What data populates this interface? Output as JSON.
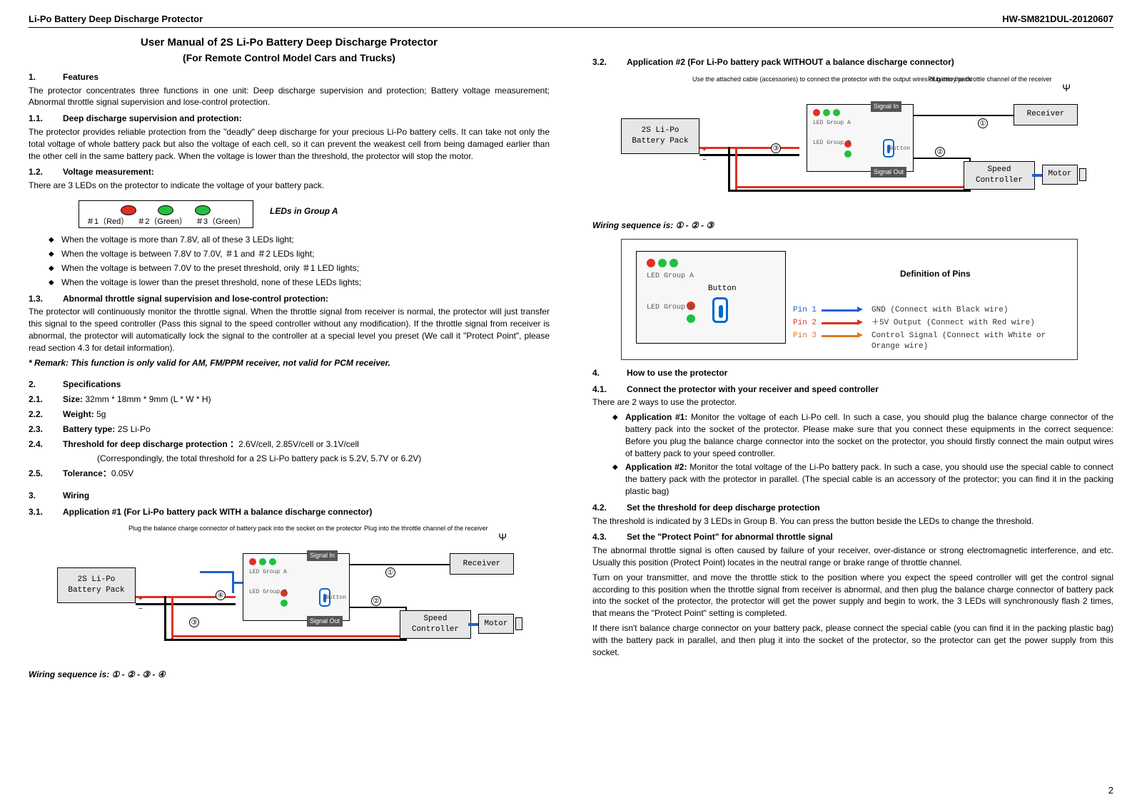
{
  "header": {
    "left": "Li-Po Battery Deep Discharge Protector",
    "right": "HW-SM821DUL-20120607"
  },
  "title": "User Manual of 2S Li-Po Battery Deep Discharge Protector",
  "subtitle": "(For Remote Control Model Cars and Trucks)",
  "s1": {
    "num": "1.",
    "title": "Features",
    "intro": "The protector concentrates three functions in one unit: Deep discharge supervision and protection; Battery voltage measurement; Abnormal throttle signal supervision and lose-control protection."
  },
  "s11": {
    "num": "1.1.",
    "title": "Deep discharge supervision and protection:",
    "body": "The protector provides reliable protection from the \"deadly\" deep discharge for your precious Li-Po battery cells. It can take not only the total voltage of whole battery pack but also the voltage of each cell, so it can prevent the weakest cell from being damaged earlier than the other cell in the same battery pack. When the voltage is lower than the threshold, the protector will stop the motor."
  },
  "s12": {
    "num": "1.2.",
    "title": "Voltage measurement:",
    "body": "There are 3 LEDs on the protector to indicate the voltage of your battery pack."
  },
  "led_diag": {
    "colors": [
      "#e03020",
      "#20c040",
      "#20c040"
    ],
    "labels": [
      "＃1（Red）",
      "＃2（Green）",
      "＃3（Green）"
    ],
    "caption": "LEDs in Group A"
  },
  "led_bullets": [
    "When the voltage is more than 7.8V, all of these 3 LEDs light;",
    "When the voltage is between 7.8V to 7.0V, ＃1 and ＃2 LEDs light;",
    "When the voltage is between 7.0V to the preset threshold, only ＃1 LED lights;",
    "When the voltage is lower than the preset threshold, none of these LEDs lights;"
  ],
  "s13": {
    "num": "1.3.",
    "title": "Abnormal throttle signal supervision and lose-control protection:",
    "body": "The protector will continuously monitor the throttle signal. When the throttle signal from receiver is normal, the protector will just transfer this signal to the speed controller (Pass this signal to the speed controller without any modification). If the throttle signal from receiver is abnormal, the protector will automatically lock the signal to the controller at a special level you preset (We call it \"Protect Point\", please read section 4.3 for detail information).",
    "remark": "* Remark: This function is only valid for AM, FM/PPM receiver, not valid for PCM receiver."
  },
  "s2": {
    "num": "2.",
    "title": "Specifications"
  },
  "specs": [
    {
      "num": "2.1.",
      "lbl": "Size:",
      "val": " 32mm * 18mm * 9mm (L * W * H)"
    },
    {
      "num": "2.2.",
      "lbl": "Weight:",
      "val": " 5g"
    },
    {
      "num": "2.3.",
      "lbl": "Battery type:",
      "val": " 2S Li-Po"
    },
    {
      "num": "2.4.",
      "lbl": "Threshold for deep discharge protection ：",
      "val": "2.6V/cell, 2.85V/cell or 3.1V/cell"
    },
    {
      "num": "",
      "lbl": "",
      "val": "(Correspondingly, the total threshold for a 2S Li-Po battery pack is 5.2V, 5.7V or 6.2V)"
    },
    {
      "num": "2.5.",
      "lbl": "Tolerance：",
      "val": "0.05V"
    }
  ],
  "s3": {
    "num": "3.",
    "title": "Wiring"
  },
  "s31": {
    "num": "3.1.",
    "title": "Application #1 (For Li-Po battery pack WITH a balance discharge connector)"
  },
  "diag_common": {
    "battery": "2S Li-Po\nBattery Pack",
    "receiver": "Receiver",
    "speedctrl": "Speed\nController",
    "motor": "Motor",
    "sig_in": "Signal In",
    "sig_out": "Signal Out",
    "led_a": "LED\nGroup A",
    "led_b": "LED\nGroup B",
    "button": "Button",
    "led_colors": [
      "#e03020",
      "#20c040",
      "#20c040"
    ],
    "ledb_color": "#e03020"
  },
  "diag1": {
    "note_left": "Plug the balance charge connector\nof battery pack into the socket on\nthe protector",
    "note_right": "Plug into the throttle channel\nof the receiver",
    "seq": "Wiring sequence is: ① - ② - ③ - ④"
  },
  "s32": {
    "num": "3.2.",
    "title": "Application #2 (For Li-Po battery pack WITHOUT a balance discharge connector)"
  },
  "diag2": {
    "note_left": "Use the attached cable (accessories)\nto connect the protector with the\noutput wires of battery pack",
    "note_right": "Plug into the throttle channel\nof the receiver",
    "seq": "Wiring sequence is: ① - ② - ③"
  },
  "pindef": {
    "button": "Button",
    "led_a": "LED\nGroup A",
    "led_b": "LED\nGroup B",
    "title": "Definition of Pins",
    "pins": [
      {
        "pin": "Pin 1",
        "color": "#2060d0",
        "desc": "GND (Connect with Black wire)"
      },
      {
        "pin": "Pin 2",
        "color": "#e03020",
        "desc": "＋5V Output (Connect with Red wire)"
      },
      {
        "pin": "Pin 3",
        "color": "#e07820",
        "desc": "Control Signal (Connect with White or Orange wire)"
      }
    ]
  },
  "s4": {
    "num": "4.",
    "title": "How to use the protector"
  },
  "s41": {
    "num": "4.1.",
    "title": "Connect the protector with your receiver and speed controller",
    "body": "There are 2 ways to use the protector."
  },
  "apps": [
    {
      "lbl": "Application #1:",
      "txt": " Monitor the voltage of each Li-Po cell. In such a case, you should plug the balance charge connector of the battery pack into the socket of the protector. Please make sure that you connect these equipments in the correct sequence: Before you plug the balance charge connector into the socket on the protector, you should firstly connect the main output wires of battery pack to your speed controller."
    },
    {
      "lbl": "Application #2:",
      "txt": " Monitor the total voltage of the Li-Po battery pack. In such a case, you should use the special cable to connect the battery pack with the protector in parallel. (The special cable is an accessory of the protector; you can find it in the packing plastic bag)"
    }
  ],
  "s42": {
    "num": "4.2.",
    "title": "Set the threshold for deep discharge protection",
    "body": "The threshold is indicated by 3 LEDs in Group B. You can press the button beside the LEDs to change the threshold."
  },
  "s43": {
    "num": "4.3.",
    "title": "Set the \"Protect Point\" for abnormal throttle signal",
    "p1": "The abnormal throttle signal is often caused by failure of your receiver, over-distance or strong electromagnetic interference, and etc. Usually this position (Protect Point) locates in the neutral range or brake range of throttle channel.",
    "p2": "Turn on your transmitter, and move the throttle stick to the position where you expect the speed controller will get the control signal according to this position when the throttle signal from receiver is abnormal, and then plug the balance charge connector of battery pack into the socket of the protector, the protector will get the power supply and begin to work, the 3 LEDs will synchronously flash 2 times, that means the \"Protect Point\" setting is completed.",
    "p3": "If there isn't balance charge connector on your battery pack, please connect the special cable (you can find it in the packing plastic bag) with the battery pack in parallel, and then plug it into the socket of the protector, so the protector can get the power supply from this socket."
  },
  "page_num": "2"
}
